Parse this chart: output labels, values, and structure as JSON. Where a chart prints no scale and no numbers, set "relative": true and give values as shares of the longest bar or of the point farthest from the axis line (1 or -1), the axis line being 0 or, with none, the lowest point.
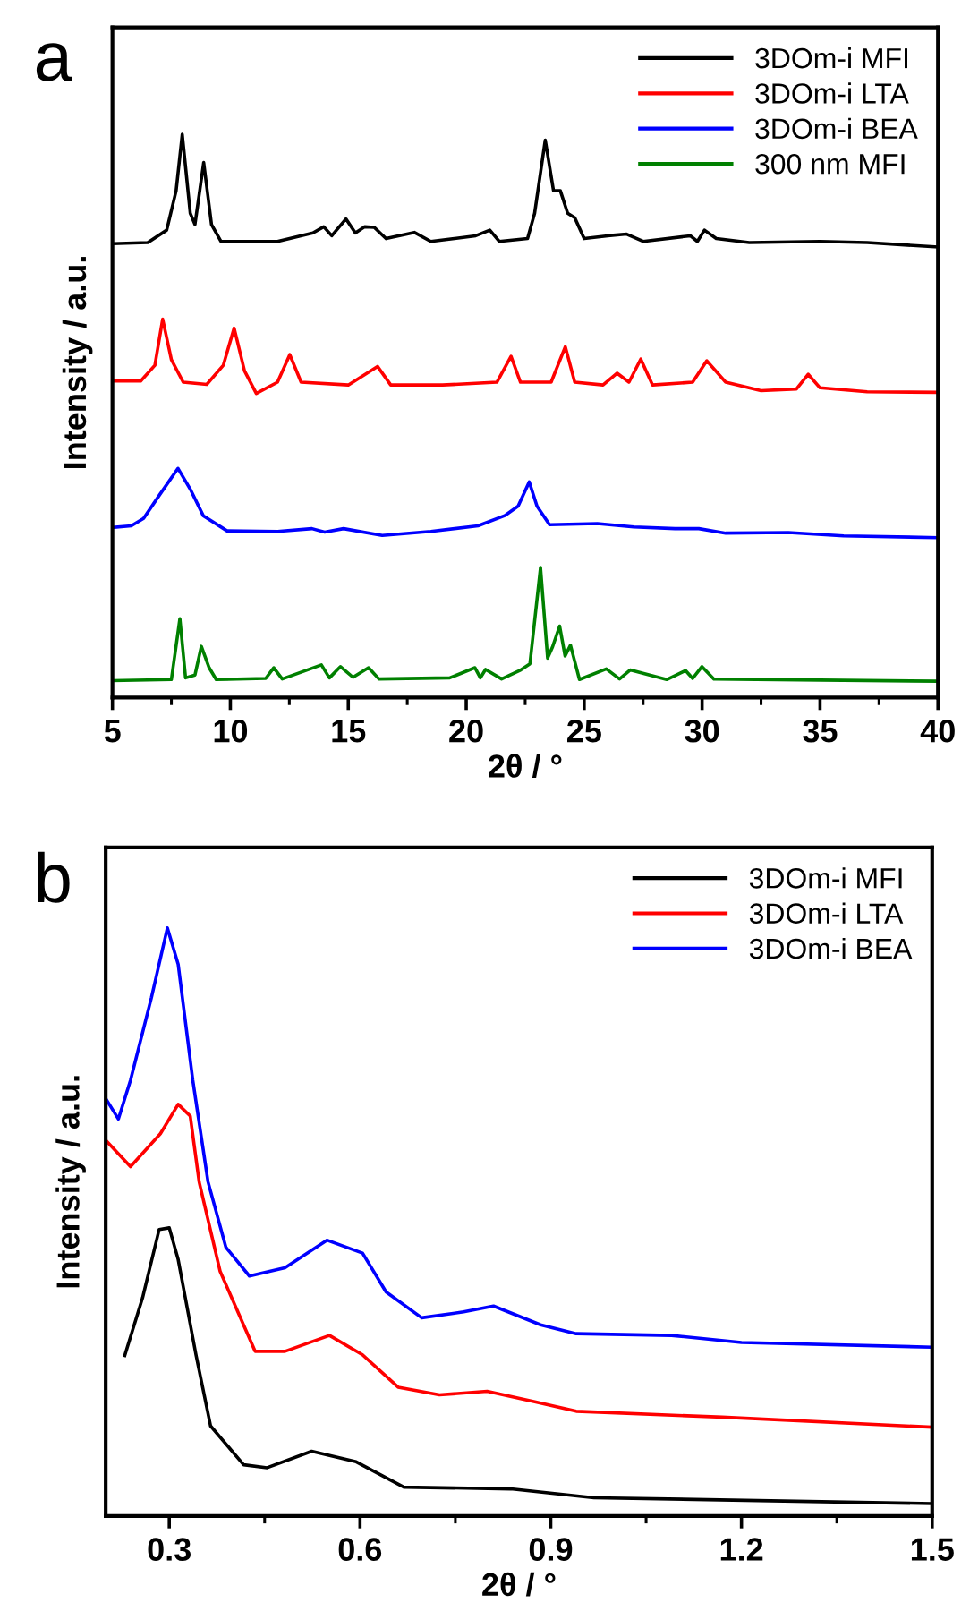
{
  "chart_data": [
    {
      "type": "line",
      "relative": true,
      "xlabel": "2θ / °",
      "ylabel": "Intensity / a.u.",
      "annotations": [
        "a"
      ],
      "xlim": [
        5,
        40
      ],
      "xticks": [
        5,
        10,
        15,
        20,
        25,
        30,
        35,
        40
      ],
      "legend": "top right",
      "grid": false,
      "tick_labels": "x",
      "marker": "none",
      "line_style": "solid",
      "series": [
        {
          "name": "3DOm-i MFI",
          "color": "#000000",
          "x": [
            5.0,
            6.5,
            7.3,
            7.7,
            7.96,
            8.3,
            8.5,
            8.87,
            9.2,
            9.6,
            12,
            13.5,
            13.96,
            14.3,
            14.9,
            15.3,
            15.7,
            16.1,
            16.6,
            17.8,
            18.5,
            19.5,
            20.4,
            21.0,
            21.4,
            22.6,
            22.9,
            23.35,
            23.7,
            23.99,
            24.3,
            24.6,
            25.0,
            26.0,
            26.8,
            27.5,
            29.5,
            29.8,
            30.1,
            30.6,
            32,
            35,
            37,
            40
          ],
          "values": [
            0.806,
            0.808,
            0.83,
            0.9,
            1.0,
            0.86,
            0.84,
            0.95,
            0.84,
            0.81,
            0.81,
            0.825,
            0.836,
            0.82,
            0.85,
            0.825,
            0.836,
            0.835,
            0.815,
            0.826,
            0.81,
            0.815,
            0.82,
            0.83,
            0.81,
            0.815,
            0.86,
            0.99,
            0.9,
            0.9,
            0.86,
            0.852,
            0.815,
            0.82,
            0.823,
            0.81,
            0.82,
            0.81,
            0.83,
            0.815,
            0.808,
            0.81,
            0.808,
            0.8
          ]
        },
        {
          "name": "3DOm-i LTA",
          "color": "#ff0000",
          "x": [
            5.0,
            6.2,
            6.8,
            7.13,
            7.5,
            8.0,
            9.0,
            9.7,
            10.16,
            10.6,
            11.1,
            12.0,
            12.52,
            13.0,
            15.0,
            16.24,
            16.8,
            19,
            21.3,
            21.9,
            22.3,
            23.6,
            24.2,
            24.6,
            25.8,
            26.4,
            26.9,
            27.4,
            27.9,
            29.6,
            30.2,
            31.0,
            32.5,
            34.0,
            34.5,
            35.0,
            37,
            40
          ],
          "values": [
            0.562,
            0.562,
            0.59,
            0.672,
            0.6,
            0.56,
            0.556,
            0.59,
            0.656,
            0.58,
            0.54,
            0.56,
            0.609,
            0.56,
            0.555,
            0.588,
            0.555,
            0.555,
            0.56,
            0.606,
            0.56,
            0.56,
            0.623,
            0.56,
            0.555,
            0.576,
            0.56,
            0.601,
            0.555,
            0.56,
            0.598,
            0.56,
            0.545,
            0.548,
            0.574,
            0.55,
            0.543,
            0.542
          ]
        },
        {
          "name": "3DOm-i BEA",
          "color": "#0000ff",
          "x": [
            5.0,
            5.8,
            6.32,
            7.0,
            7.78,
            8.3,
            8.85,
            9.86,
            12,
            13.46,
            14.0,
            14.8,
            16.44,
            18.5,
            20.5,
            21.63,
            22.2,
            22.67,
            23.0,
            23.53,
            25.56,
            27.1,
            28.85,
            29.86,
            31,
            33.66,
            36,
            40
          ],
          "values": [
            0.302,
            0.305,
            0.318,
            0.36,
            0.407,
            0.37,
            0.323,
            0.296,
            0.295,
            0.3,
            0.294,
            0.3,
            0.288,
            0.295,
            0.305,
            0.323,
            0.34,
            0.383,
            0.34,
            0.307,
            0.309,
            0.303,
            0.3,
            0.3,
            0.292,
            0.293,
            0.287,
            0.284
          ]
        },
        {
          "name": "300 nm MFI",
          "color": "#008000",
          "x": [
            5.0,
            7.5,
            7.86,
            8.1,
            8.5,
            8.77,
            9.1,
            9.4,
            11.5,
            11.84,
            12.2,
            13.86,
            14.2,
            14.67,
            15.2,
            15.86,
            16.3,
            19.3,
            20.37,
            20.6,
            20.82,
            21.5,
            22.27,
            22.7,
            23.15,
            23.45,
            23.66,
            23.96,
            24.19,
            24.42,
            24.8,
            25.94,
            26.5,
            26.95,
            28.5,
            29.3,
            29.6,
            29.99,
            30.5,
            35,
            40
          ],
          "values": [
            0.03,
            0.032,
            0.14,
            0.035,
            0.04,
            0.091,
            0.053,
            0.032,
            0.034,
            0.053,
            0.033,
            0.058,
            0.035,
            0.055,
            0.036,
            0.053,
            0.033,
            0.035,
            0.053,
            0.035,
            0.05,
            0.033,
            0.048,
            0.06,
            0.231,
            0.07,
            0.09,
            0.127,
            0.074,
            0.093,
            0.032,
            0.051,
            0.033,
            0.049,
            0.032,
            0.048,
            0.034,
            0.055,
            0.033,
            0.031,
            0.029
          ]
        }
      ]
    },
    {
      "type": "line",
      "relative": true,
      "xlabel": "2θ / °",
      "ylabel": "Intensity / a.u.",
      "annotations": [
        "b"
      ],
      "xlim": [
        0.2,
        1.5
      ],
      "xticks": [
        0.3,
        0.6,
        0.9,
        1.2,
        1.5
      ],
      "legend": "top right",
      "grid": false,
      "tick_labels": "x",
      "marker": "none",
      "line_style": "solid",
      "series": [
        {
          "name": "3DOm-i MFI",
          "color": "#000000",
          "x": [
            0.23,
            0.258,
            0.284,
            0.3,
            0.314,
            0.342,
            0.365,
            0.417,
            0.454,
            0.524,
            0.594,
            0.669,
            0.837,
            0.968,
            1.5
          ],
          "values": [
            0.273,
            0.371,
            0.487,
            0.49,
            0.436,
            0.274,
            0.153,
            0.087,
            0.082,
            0.11,
            0.092,
            0.049,
            0.046,
            0.031,
            0.021
          ]
        },
        {
          "name": "3DOm-i LTA",
          "color": "#ff0000",
          "x": [
            0.2,
            0.239,
            0.286,
            0.314,
            0.333,
            0.347,
            0.38,
            0.435,
            0.482,
            0.552,
            0.604,
            0.66,
            0.725,
            0.8,
            0.875,
            0.94,
            1.17,
            1.5
          ],
          "values": [
            0.639,
            0.594,
            0.65,
            0.7,
            0.68,
            0.568,
            0.416,
            0.28,
            0.28,
            0.307,
            0.274,
            0.219,
            0.206,
            0.212,
            0.194,
            0.178,
            0.168,
            0.151
          ]
        },
        {
          "name": "3DOm-i BEA",
          "color": "#0000ff",
          "x": [
            0.2,
            0.22,
            0.239,
            0.272,
            0.297,
            0.314,
            0.337,
            0.361,
            0.389,
            0.426,
            0.482,
            0.548,
            0.604,
            0.641,
            0.697,
            0.763,
            0.81,
            0.884,
            0.94,
            1.09,
            1.2,
            1.5
          ],
          "values": [
            0.71,
            0.675,
            0.741,
            0.882,
            1.0,
            0.938,
            0.741,
            0.568,
            0.457,
            0.408,
            0.422,
            0.469,
            0.447,
            0.381,
            0.337,
            0.347,
            0.357,
            0.325,
            0.31,
            0.307,
            0.295,
            0.287
          ]
        }
      ]
    }
  ]
}
